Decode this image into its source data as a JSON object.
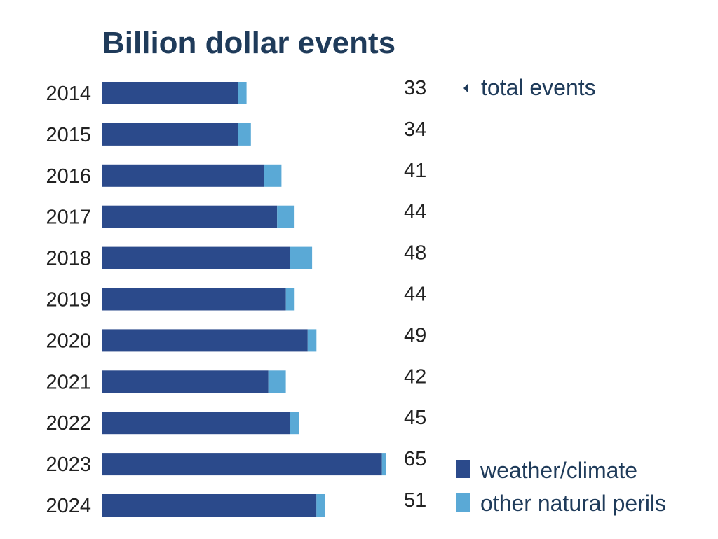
{
  "chart_data": {
    "type": "bar",
    "orientation": "horizontal",
    "stacked": true,
    "title": "Billion dollar events",
    "categories": [
      "2014",
      "2015",
      "2016",
      "2017",
      "2018",
      "2019",
      "2020",
      "2021",
      "2022",
      "2023",
      "2024"
    ],
    "series": [
      {
        "name": "weather/climate",
        "color": "#2b4a8b",
        "values": [
          31,
          31,
          37,
          40,
          43,
          42,
          47,
          38,
          43,
          64,
          49
        ]
      },
      {
        "name": "other natural perils",
        "color": "#5aa9d6",
        "values": [
          2,
          3,
          4,
          4,
          5,
          2,
          2,
          4,
          2,
          1,
          2
        ]
      }
    ],
    "totals": [
      33,
      34,
      41,
      44,
      48,
      44,
      49,
      42,
      45,
      65,
      51
    ],
    "annotation": "total events",
    "annotation_icon": "caret-left-icon",
    "xlim": [
      0,
      65
    ],
    "grid": false,
    "legend_position": "bottom-right",
    "text_color": "#1f3b5a"
  }
}
